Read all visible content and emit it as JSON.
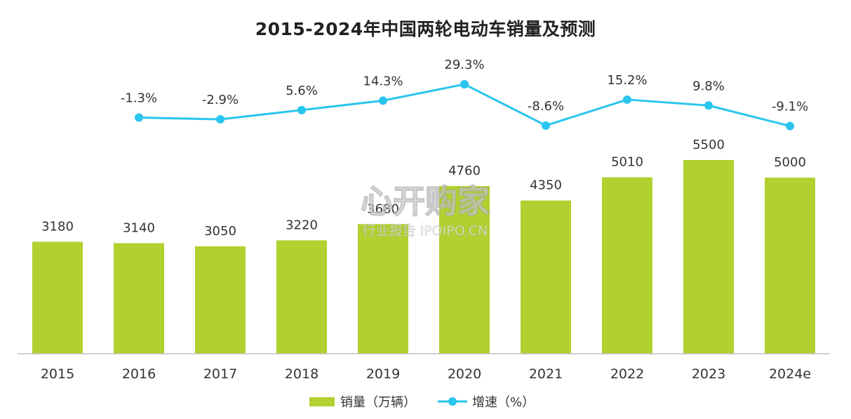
{
  "chart_data": {
    "type": "bar",
    "title": "2015-2024年中国两轮电动车销量及预测",
    "categories": [
      "2015",
      "2016",
      "2017",
      "2018",
      "2019",
      "2020",
      "2021",
      "2022",
      "2023",
      "2024e"
    ],
    "series": [
      {
        "name": "销量（万辆）",
        "type": "bar",
        "color": "#b0d12f",
        "values": [
          3180,
          3140,
          3050,
          3220,
          3680,
          4760,
          4350,
          5010,
          5500,
          5000
        ],
        "labels": [
          "3180",
          "3140",
          "3050",
          "3220",
          "3680",
          "4760",
          "4350",
          "5010",
          "5500",
          "5000"
        ]
      },
      {
        "name": "增速（%）",
        "type": "line",
        "color": "#29c5ee",
        "values": [
          null,
          -1.3,
          -2.9,
          5.6,
          14.3,
          29.3,
          -8.6,
          15.2,
          9.8,
          -9.1
        ],
        "labels": [
          "",
          "-1.3%",
          "-2.9%",
          "5.6%",
          "14.3%",
          "29.3%",
          "-8.6%",
          "15.2%",
          "9.8%",
          "-9.1%"
        ]
      }
    ],
    "legend_position": "bottom-center",
    "grid": false
  },
  "watermark": {
    "main": "心开购家",
    "sub": "行业报告 IPOIPO.CN"
  }
}
